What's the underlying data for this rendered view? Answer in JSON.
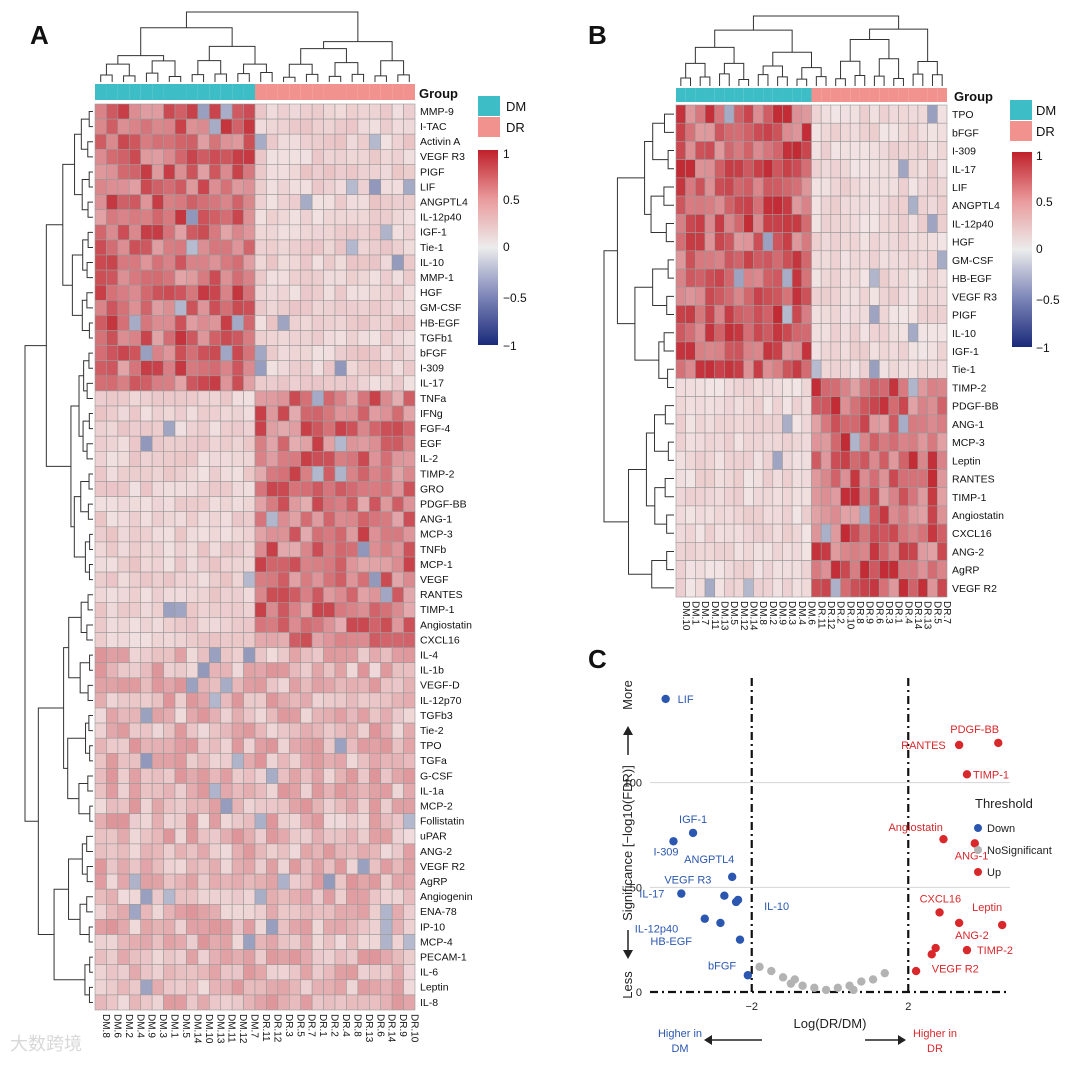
{
  "panels": {
    "a": "A",
    "b": "B",
    "c": "C"
  },
  "legend_group": {
    "title": "Group",
    "dm": "DM",
    "dr": "DR"
  },
  "colorbar_ticks": [
    "1",
    "0.5",
    "0",
    "−0.5",
    "−1"
  ],
  "colors": {
    "dm": "#3dbdc5",
    "dr": "#f2928f",
    "high": "#c0202a",
    "low": "#1a2a7a",
    "mid": "#ececec",
    "down": "#2b57b0",
    "up": "#d8282c",
    "ns": "#b3b3b3"
  },
  "heatmap_a": {
    "columns": [
      "DM.8",
      "DM.6",
      "DM.2",
      "DM.4",
      "DM.9",
      "DM.3",
      "DM.1",
      "DM.5",
      "DM.14",
      "DM.10",
      "DM.13",
      "DM.11",
      "DM.12",
      "DM.7",
      "DR.11",
      "DR.12",
      "DR.3",
      "DR.5",
      "DR.7",
      "DR.1",
      "DR.2",
      "DR.4",
      "DR.8",
      "DR.13",
      "DR.6",
      "DR.14",
      "DR.9",
      "DR.10"
    ],
    "rows": [
      "MMP-9",
      "I-TAC",
      "Activin A",
      "VEGF R3",
      "PIGF",
      "LIF",
      "ANGPTL4",
      "IL-12p40",
      "IGF-1",
      "Tie-1",
      "IL-10",
      "MMP-1",
      "HGF",
      "GM-CSF",
      "HB-EGF",
      "TGFb1",
      "bFGF",
      "I-309",
      "IL-17",
      "TNFa",
      "IFNg",
      "FGF-4",
      "EGF",
      "IL-2",
      "TIMP-2",
      "GRO",
      "PDGF-BB",
      "ANG-1",
      "MCP-3",
      "TNFb",
      "MCP-1",
      "VEGF",
      "RANTES",
      "TIMP-1",
      "Angiostatin",
      "CXCL16",
      "IL-4",
      "IL-1b",
      "VEGF-D",
      "IL-12p70",
      "TGFb3",
      "Tie-2",
      "TPO",
      "TGFa",
      "G-CSF",
      "IL-1a",
      "MCP-2",
      "Follistatin",
      "uPAR",
      "ANG-2",
      "VEGF R2",
      "AgRP",
      "Angiogenin",
      "ENA-78",
      "IP-10",
      "MCP-4",
      "PECAM-1",
      "IL-6",
      "Leptin",
      "IL-8"
    ]
  },
  "heatmap_b": {
    "columns": [
      "DM.10",
      "DM.1",
      "DM.7",
      "DM.11",
      "DM.13",
      "DM.5",
      "DM.12",
      "DM.14",
      "DM.8",
      "DM.2",
      "DM.9",
      "DM.3",
      "DM.4",
      "DM.6",
      "DR.11",
      "DR.12",
      "DR.2",
      "DR.10",
      "DR.8",
      "DR.9",
      "DR.6",
      "DR.3",
      "DR.1",
      "DR.4",
      "DR.14",
      "DR.13",
      "DR.5",
      "DR.7"
    ],
    "rows": [
      "TPO",
      "bFGF",
      "I-309",
      "IL-17",
      "LIF",
      "ANGPTL4",
      "IL-12p40",
      "HGF",
      "GM-CSF",
      "HB-EGF",
      "VEGF R3",
      "PIGF",
      "IL-10",
      "IGF-1",
      "Tie-1",
      "TIMP-2",
      "PDGF-BB",
      "ANG-1",
      "MCP-3",
      "Leptin",
      "RANTES",
      "TIMP-1",
      "Angiostatin",
      "CXCL16",
      "ANG-2",
      "AgRP",
      "VEGF R2"
    ]
  },
  "chart_data": {
    "type": "scatter",
    "title": "",
    "xlabel": "Log(DR/DM)",
    "ylabel": "Significance [−log10(FDR)]",
    "ylabel_less": "Less",
    "ylabel_more": "More",
    "x_left_note": "Higher in DM",
    "x_right_note": "Higher in DR",
    "xlim": [
      -4.6,
      4.6
    ],
    "ylim": [
      0,
      150
    ],
    "x_thresholds": [
      -2,
      2
    ],
    "x_tick_labels": [
      "−2",
      "2"
    ],
    "y_ticks": [
      0,
      50,
      100
    ],
    "y_gridlines": [
      50,
      100
    ],
    "legend": {
      "title": "Threshold",
      "down": "Down",
      "ns": "NoSignificant",
      "up": "Up"
    },
    "series": [
      {
        "name": "Down",
        "points": [
          {
            "label": "LIF",
            "x": -4.2,
            "y": 140
          },
          {
            "label": "IGF-1",
            "x": -3.5,
            "y": 76
          },
          {
            "label": "I-309",
            "x": -4.0,
            "y": 72
          },
          {
            "label": "ANGPTL4",
            "x": -2.5,
            "y": 55
          },
          {
            "label": "VEGF R3",
            "x": -2.7,
            "y": 46
          },
          {
            "label": "IL-17",
            "x": -3.8,
            "y": 47
          },
          {
            "label": "IL-12p40",
            "x": -3.2,
            "y": 35
          },
          {
            "label": "IL-10",
            "x": -2.4,
            "y": 43
          },
          {
            "label": "HB-EGF",
            "x": -2.8,
            "y": 33
          },
          {
            "label": "bFGF",
            "x": -2.3,
            "y": 25
          },
          {
            "label": "",
            "x": -2.35,
            "y": 44
          },
          {
            "label": "",
            "x": -2.1,
            "y": 8
          }
        ]
      },
      {
        "name": "NoSignificant",
        "points": [
          {
            "label": "",
            "x": -1.8,
            "y": 12
          },
          {
            "label": "",
            "x": -1.5,
            "y": 10
          },
          {
            "label": "",
            "x": -1.2,
            "y": 7
          },
          {
            "label": "",
            "x": -1.0,
            "y": 4
          },
          {
            "label": "",
            "x": -0.7,
            "y": 3
          },
          {
            "label": "",
            "x": -0.4,
            "y": 2
          },
          {
            "label": "",
            "x": -0.1,
            "y": 1
          },
          {
            "label": "",
            "x": 0.2,
            "y": 2
          },
          {
            "label": "",
            "x": 0.5,
            "y": 3
          },
          {
            "label": "",
            "x": 0.8,
            "y": 5
          },
          {
            "label": "",
            "x": 1.1,
            "y": 6
          },
          {
            "label": "",
            "x": 1.4,
            "y": 9
          },
          {
            "label": "",
            "x": -0.9,
            "y": 6
          },
          {
            "label": "",
            "x": 0.6,
            "y": 1
          }
        ]
      },
      {
        "name": "Up",
        "points": [
          {
            "label": "PDGF-BB",
            "x": 4.3,
            "y": 119
          },
          {
            "label": "RANTES",
            "x": 3.3,
            "y": 118
          },
          {
            "label": "TIMP-1",
            "x": 3.5,
            "y": 104
          },
          {
            "label": "Angiostatin",
            "x": 2.9,
            "y": 73
          },
          {
            "label": "ANG-1",
            "x": 3.7,
            "y": 71
          },
          {
            "label": "CXCL16",
            "x": 2.8,
            "y": 38
          },
          {
            "label": "Leptin",
            "x": 4.4,
            "y": 32
          },
          {
            "label": "ANG-2",
            "x": 3.3,
            "y": 33
          },
          {
            "label": "TIMP-2",
            "x": 3.5,
            "y": 20
          },
          {
            "label": "VEGF R2",
            "x": 2.6,
            "y": 18
          },
          {
            "label": "",
            "x": 2.7,
            "y": 21
          },
          {
            "label": "",
            "x": 2.2,
            "y": 10
          }
        ]
      }
    ]
  },
  "watermark": "大数跨境"
}
